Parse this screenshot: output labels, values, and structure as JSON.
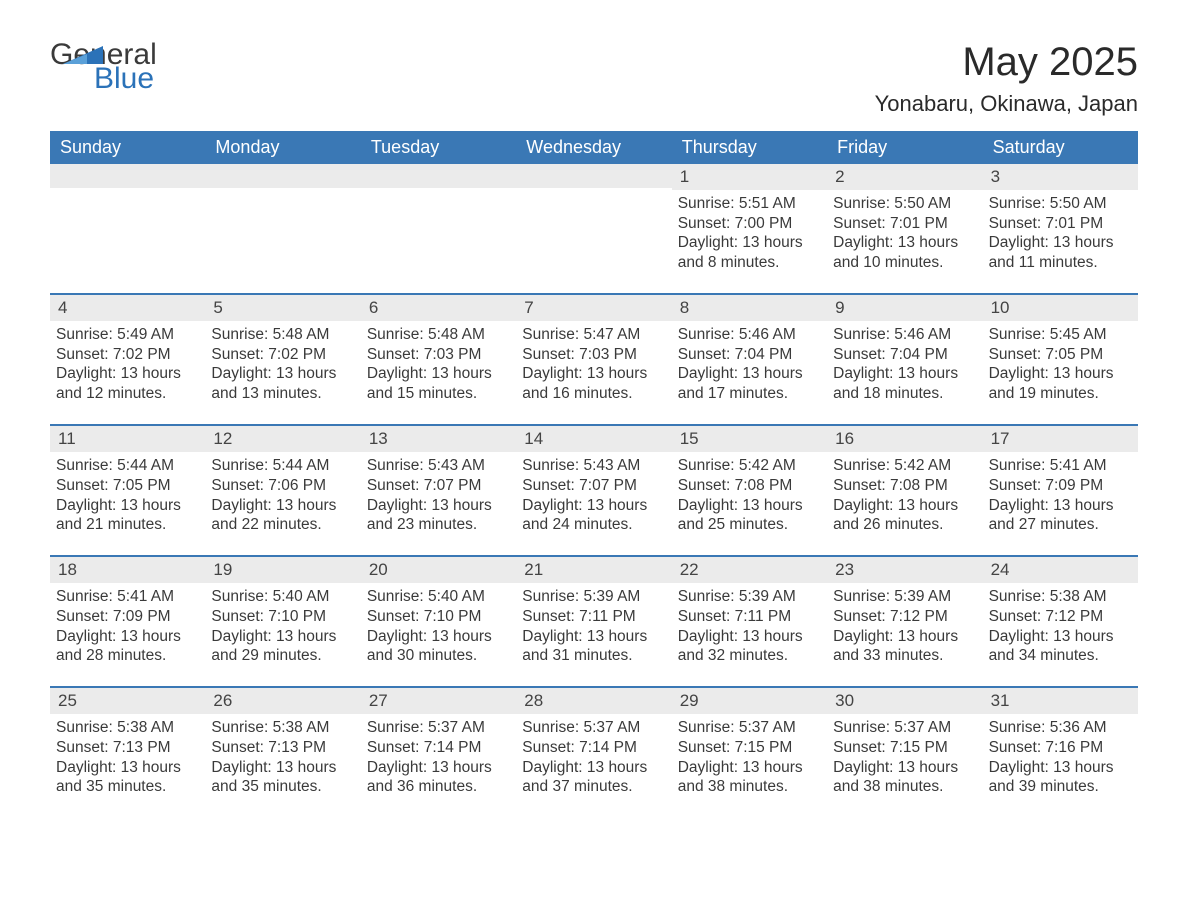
{
  "brand": {
    "line1": "General",
    "line2": "Blue"
  },
  "title": "May 2025",
  "location": "Yonabaru, Okinawa, Japan",
  "colors": {
    "header_bg": "#3a78b5",
    "header_text": "#ffffff",
    "daynum_bg": "#ebebeb",
    "week_border": "#3a78b5",
    "body_text": "#3a3a3a",
    "brand_blue": "#2b72b8"
  },
  "dow": [
    "Sunday",
    "Monday",
    "Tuesday",
    "Wednesday",
    "Thursday",
    "Friday",
    "Saturday"
  ],
  "weeks": [
    [
      {
        "day": null
      },
      {
        "day": null
      },
      {
        "day": null
      },
      {
        "day": null
      },
      {
        "day": "1",
        "sunrise": "Sunrise: 5:51 AM",
        "sunset": "Sunset: 7:00 PM",
        "daylight1": "Daylight: 13 hours",
        "daylight2": "and 8 minutes."
      },
      {
        "day": "2",
        "sunrise": "Sunrise: 5:50 AM",
        "sunset": "Sunset: 7:01 PM",
        "daylight1": "Daylight: 13 hours",
        "daylight2": "and 10 minutes."
      },
      {
        "day": "3",
        "sunrise": "Sunrise: 5:50 AM",
        "sunset": "Sunset: 7:01 PM",
        "daylight1": "Daylight: 13 hours",
        "daylight2": "and 11 minutes."
      }
    ],
    [
      {
        "day": "4",
        "sunrise": "Sunrise: 5:49 AM",
        "sunset": "Sunset: 7:02 PM",
        "daylight1": "Daylight: 13 hours",
        "daylight2": "and 12 minutes."
      },
      {
        "day": "5",
        "sunrise": "Sunrise: 5:48 AM",
        "sunset": "Sunset: 7:02 PM",
        "daylight1": "Daylight: 13 hours",
        "daylight2": "and 13 minutes."
      },
      {
        "day": "6",
        "sunrise": "Sunrise: 5:48 AM",
        "sunset": "Sunset: 7:03 PM",
        "daylight1": "Daylight: 13 hours",
        "daylight2": "and 15 minutes."
      },
      {
        "day": "7",
        "sunrise": "Sunrise: 5:47 AM",
        "sunset": "Sunset: 7:03 PM",
        "daylight1": "Daylight: 13 hours",
        "daylight2": "and 16 minutes."
      },
      {
        "day": "8",
        "sunrise": "Sunrise: 5:46 AM",
        "sunset": "Sunset: 7:04 PM",
        "daylight1": "Daylight: 13 hours",
        "daylight2": "and 17 minutes."
      },
      {
        "day": "9",
        "sunrise": "Sunrise: 5:46 AM",
        "sunset": "Sunset: 7:04 PM",
        "daylight1": "Daylight: 13 hours",
        "daylight2": "and 18 minutes."
      },
      {
        "day": "10",
        "sunrise": "Sunrise: 5:45 AM",
        "sunset": "Sunset: 7:05 PM",
        "daylight1": "Daylight: 13 hours",
        "daylight2": "and 19 minutes."
      }
    ],
    [
      {
        "day": "11",
        "sunrise": "Sunrise: 5:44 AM",
        "sunset": "Sunset: 7:05 PM",
        "daylight1": "Daylight: 13 hours",
        "daylight2": "and 21 minutes."
      },
      {
        "day": "12",
        "sunrise": "Sunrise: 5:44 AM",
        "sunset": "Sunset: 7:06 PM",
        "daylight1": "Daylight: 13 hours",
        "daylight2": "and 22 minutes."
      },
      {
        "day": "13",
        "sunrise": "Sunrise: 5:43 AM",
        "sunset": "Sunset: 7:07 PM",
        "daylight1": "Daylight: 13 hours",
        "daylight2": "and 23 minutes."
      },
      {
        "day": "14",
        "sunrise": "Sunrise: 5:43 AM",
        "sunset": "Sunset: 7:07 PM",
        "daylight1": "Daylight: 13 hours",
        "daylight2": "and 24 minutes."
      },
      {
        "day": "15",
        "sunrise": "Sunrise: 5:42 AM",
        "sunset": "Sunset: 7:08 PM",
        "daylight1": "Daylight: 13 hours",
        "daylight2": "and 25 minutes."
      },
      {
        "day": "16",
        "sunrise": "Sunrise: 5:42 AM",
        "sunset": "Sunset: 7:08 PM",
        "daylight1": "Daylight: 13 hours",
        "daylight2": "and 26 minutes."
      },
      {
        "day": "17",
        "sunrise": "Sunrise: 5:41 AM",
        "sunset": "Sunset: 7:09 PM",
        "daylight1": "Daylight: 13 hours",
        "daylight2": "and 27 minutes."
      }
    ],
    [
      {
        "day": "18",
        "sunrise": "Sunrise: 5:41 AM",
        "sunset": "Sunset: 7:09 PM",
        "daylight1": "Daylight: 13 hours",
        "daylight2": "and 28 minutes."
      },
      {
        "day": "19",
        "sunrise": "Sunrise: 5:40 AM",
        "sunset": "Sunset: 7:10 PM",
        "daylight1": "Daylight: 13 hours",
        "daylight2": "and 29 minutes."
      },
      {
        "day": "20",
        "sunrise": "Sunrise: 5:40 AM",
        "sunset": "Sunset: 7:10 PM",
        "daylight1": "Daylight: 13 hours",
        "daylight2": "and 30 minutes."
      },
      {
        "day": "21",
        "sunrise": "Sunrise: 5:39 AM",
        "sunset": "Sunset: 7:11 PM",
        "daylight1": "Daylight: 13 hours",
        "daylight2": "and 31 minutes."
      },
      {
        "day": "22",
        "sunrise": "Sunrise: 5:39 AM",
        "sunset": "Sunset: 7:11 PM",
        "daylight1": "Daylight: 13 hours",
        "daylight2": "and 32 minutes."
      },
      {
        "day": "23",
        "sunrise": "Sunrise: 5:39 AM",
        "sunset": "Sunset: 7:12 PM",
        "daylight1": "Daylight: 13 hours",
        "daylight2": "and 33 minutes."
      },
      {
        "day": "24",
        "sunrise": "Sunrise: 5:38 AM",
        "sunset": "Sunset: 7:12 PM",
        "daylight1": "Daylight: 13 hours",
        "daylight2": "and 34 minutes."
      }
    ],
    [
      {
        "day": "25",
        "sunrise": "Sunrise: 5:38 AM",
        "sunset": "Sunset: 7:13 PM",
        "daylight1": "Daylight: 13 hours",
        "daylight2": "and 35 minutes."
      },
      {
        "day": "26",
        "sunrise": "Sunrise: 5:38 AM",
        "sunset": "Sunset: 7:13 PM",
        "daylight1": "Daylight: 13 hours",
        "daylight2": "and 35 minutes."
      },
      {
        "day": "27",
        "sunrise": "Sunrise: 5:37 AM",
        "sunset": "Sunset: 7:14 PM",
        "daylight1": "Daylight: 13 hours",
        "daylight2": "and 36 minutes."
      },
      {
        "day": "28",
        "sunrise": "Sunrise: 5:37 AM",
        "sunset": "Sunset: 7:14 PM",
        "daylight1": "Daylight: 13 hours",
        "daylight2": "and 37 minutes."
      },
      {
        "day": "29",
        "sunrise": "Sunrise: 5:37 AM",
        "sunset": "Sunset: 7:15 PM",
        "daylight1": "Daylight: 13 hours",
        "daylight2": "and 38 minutes."
      },
      {
        "day": "30",
        "sunrise": "Sunrise: 5:37 AM",
        "sunset": "Sunset: 7:15 PM",
        "daylight1": "Daylight: 13 hours",
        "daylight2": "and 38 minutes."
      },
      {
        "day": "31",
        "sunrise": "Sunrise: 5:36 AM",
        "sunset": "Sunset: 7:16 PM",
        "daylight1": "Daylight: 13 hours",
        "daylight2": "and 39 minutes."
      }
    ]
  ]
}
